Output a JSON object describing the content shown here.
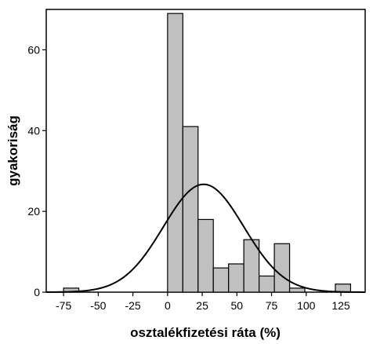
{
  "chart_data": {
    "type": "bar",
    "subtype": "histogram",
    "title": "",
    "xlabel": "osztalékfizetési ráta (%)",
    "ylabel": "gyakoriság",
    "xlim": [
      -87.5,
      142.5
    ],
    "ylim": [
      0,
      70
    ],
    "x_ticks": [
      -75,
      -50,
      -25,
      0,
      25,
      50,
      75,
      100,
      125
    ],
    "x_tick_labels": [
      "-75",
      "-50",
      "-25",
      "0",
      "25",
      "50",
      "75",
      "100",
      "125"
    ],
    "y_ticks": [
      0,
      20,
      40,
      60
    ],
    "y_tick_labels": [
      "0",
      "20",
      "40",
      "60"
    ],
    "bin_width": 11,
    "bins": [
      {
        "start": -75,
        "end": -64,
        "count": 1
      },
      {
        "start": 0,
        "end": 11,
        "count": 69
      },
      {
        "start": 11,
        "end": 22,
        "count": 41
      },
      {
        "start": 22,
        "end": 33,
        "count": 18
      },
      {
        "start": 33,
        "end": 44,
        "count": 6
      },
      {
        "start": 44,
        "end": 55,
        "count": 7
      },
      {
        "start": 55,
        "end": 66,
        "count": 13
      },
      {
        "start": 66,
        "end": 77,
        "count": 4
      },
      {
        "start": 77,
        "end": 88,
        "count": 12
      },
      {
        "start": 88,
        "end": 99,
        "count": 1
      },
      {
        "start": 121,
        "end": 132,
        "count": 2
      }
    ],
    "normal_curve": {
      "mean": 26,
      "sd": 29,
      "peak": 26.7
    },
    "grid": false,
    "legend": "none",
    "colors": {
      "bar_fill": "#c0c0c0",
      "bar_stroke": "#000000",
      "curve": "#000000",
      "frame": "#000000"
    }
  }
}
